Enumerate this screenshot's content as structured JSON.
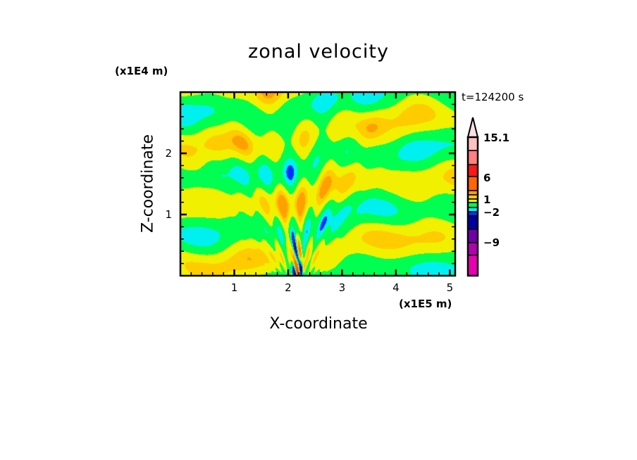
{
  "chart_data": {
    "type": "heatmap",
    "title": "zonal velocity",
    "xlabel": "X-coordinate",
    "ylabel": "Z-coordinate",
    "x_unit": "(x1E5 m)",
    "y_unit": "(x1E4 m)",
    "time_label": "t=124200 s",
    "xlim": [
      0,
      5.1
    ],
    "ylim": [
      0,
      3.0
    ],
    "x_ticks": [
      "1",
      "2",
      "3",
      "4",
      "5"
    ],
    "x_tick_values": [
      1,
      2,
      3,
      4,
      5
    ],
    "y_ticks": [
      "1",
      "2"
    ],
    "y_tick_values": [
      1,
      2
    ],
    "colorbar": {
      "labels": [
        "15.1",
        "6",
        "1",
        "−2",
        "−9"
      ],
      "levels_top_to_bottom": [
        "over",
        ">15.1",
        "10",
        "6",
        "3",
        "2",
        "1",
        "0",
        "-1",
        "-2",
        "-3",
        "-6",
        "-9",
        "-12",
        "under"
      ],
      "colors_top_to_bottom": [
        "#ffe0e0",
        "#ffc0c0",
        "#ff8080",
        "#ff1818",
        "#ff6600",
        "#ffa000",
        "#ffcc00",
        "#f0f000",
        "#00ff50",
        "#00f0f0",
        "#0030ff",
        "#0000a0",
        "#7000a8",
        "#b000b0",
        "#e800b0"
      ]
    }
  }
}
